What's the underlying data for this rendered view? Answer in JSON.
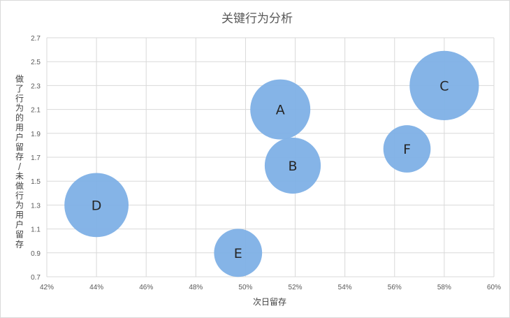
{
  "chart_data": {
    "type": "bubble",
    "title": "关键行为分析",
    "xlabel": "次日留存",
    "ylabel": "做了行为的用户留存/未做行为用户留存",
    "xlim": [
      0.42,
      0.6
    ],
    "ylim": [
      0.7,
      2.7
    ],
    "x_ticks": [
      "42%",
      "44%",
      "46%",
      "48%",
      "50%",
      "52%",
      "54%",
      "56%",
      "58%",
      "60%"
    ],
    "y_ticks": [
      "0.7",
      "0.9",
      "1.1",
      "1.3",
      "1.5",
      "1.7",
      "1.9",
      "2.1",
      "2.3",
      "2.5",
      "2.7"
    ],
    "grid": true,
    "bubble_color": "#7eb0e6",
    "points": [
      {
        "label": "A",
        "x": 0.514,
        "y": 2.1,
        "size": 1.0
      },
      {
        "label": "B",
        "x": 0.519,
        "y": 1.63,
        "size": 0.87
      },
      {
        "label": "C",
        "x": 0.58,
        "y": 2.3,
        "size": 1.33
      },
      {
        "label": "D",
        "x": 0.44,
        "y": 1.3,
        "size": 1.14
      },
      {
        "label": "E",
        "x": 0.497,
        "y": 0.9,
        "size": 0.64
      },
      {
        "label": "F",
        "x": 0.565,
        "y": 1.77,
        "size": 0.62
      }
    ]
  }
}
